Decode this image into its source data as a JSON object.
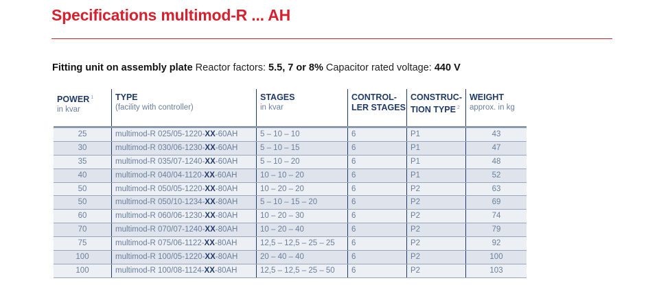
{
  "title": "Specifications multimod-R ... AH",
  "subtitle": {
    "lead": "Fitting unit on assembly plate",
    "reactor_label": "Reactor factors:",
    "reactor_value": "5.5, 7 or 8%",
    "capacitor_label": "Capacitor rated voltage:",
    "capacitor_value": "440 V"
  },
  "columns": [
    {
      "title": "POWER",
      "note": "1",
      "sub": "in kvar"
    },
    {
      "title": "TYPE",
      "note": "",
      "sub": "(facility with controller)"
    },
    {
      "title": "STAGES",
      "note": "",
      "sub": "in kvar"
    },
    {
      "title": "CONTROL-",
      "note": "",
      "sub": "LER STAGES"
    },
    {
      "title": "CONSTRUC-",
      "note": "2",
      "sub": "TION TYPE"
    },
    {
      "title": "WEIGHT",
      "note": "",
      "sub": "approx. in kg"
    }
  ],
  "rows": [
    {
      "power": "25",
      "type_pre": "multimod-R 025/05-1220-",
      "type_bold": "XX",
      "type_post": "-60AH",
      "stages": "5 – 10 – 10",
      "ctrl": "6",
      "construction": "P1",
      "weight": "43"
    },
    {
      "power": "30",
      "type_pre": "multimod-R 030/06-1230-",
      "type_bold": "XX",
      "type_post": "-60AH",
      "stages": "5 – 10 – 15",
      "ctrl": "6",
      "construction": "P1",
      "weight": "47"
    },
    {
      "power": "35",
      "type_pre": "multimod-R 035/07-1240-",
      "type_bold": "XX",
      "type_post": "-60AH",
      "stages": "5 – 10 – 20",
      "ctrl": "6",
      "construction": "P1",
      "weight": "48"
    },
    {
      "power": "40",
      "type_pre": "multimod-R 040/04-1120-",
      "type_bold": "XX",
      "type_post": "-60AH",
      "stages": "10 – 10 – 20",
      "ctrl": "6",
      "construction": "P1",
      "weight": "52"
    },
    {
      "power": "50",
      "type_pre": "multimod-R 050/05-1220-",
      "type_bold": "XX",
      "type_post": "-80AH",
      "stages": "10 – 20 – 20",
      "ctrl": "6",
      "construction": "P2",
      "weight": "63"
    },
    {
      "power": "50",
      "type_pre": "multimod-R 050/10-1234-",
      "type_bold": "XX",
      "type_post": "-80AH",
      "stages": "5 – 10 – 15 – 20",
      "ctrl": "6",
      "construction": "P2",
      "weight": "69"
    },
    {
      "power": "60",
      "type_pre": "multimod-R 060/06-1230-",
      "type_bold": "XX",
      "type_post": "-80AH",
      "stages": "10 – 20 – 30",
      "ctrl": "6",
      "construction": "P2",
      "weight": "74"
    },
    {
      "power": "70",
      "type_pre": "multimod-R 070/07-1240-",
      "type_bold": "XX",
      "type_post": "-80AH",
      "stages": "10 – 20 – 40",
      "ctrl": "6",
      "construction": "P2",
      "weight": "79"
    },
    {
      "power": "75",
      "type_pre": "multimod-R 075/06-1122-",
      "type_bold": "XX",
      "type_post": "-80AH",
      "stages": "12,5 – 12,5 – 25 – 25",
      "ctrl": "6",
      "construction": "P2",
      "weight": "92"
    },
    {
      "power": "100",
      "type_pre": "multimod-R 100/05-1220-",
      "type_bold": "XX",
      "type_post": "-80AH",
      "stages": "20 – 40 – 40",
      "ctrl": "6",
      "construction": "P2",
      "weight": "100"
    },
    {
      "power": "100",
      "type_pre": "multimod-R 100/08-1124-",
      "type_bold": "XX",
      "type_post": "-80AH",
      "stages": "12,5 – 12,5 – 25 – 50",
      "ctrl": "6",
      "construction": "P2",
      "weight": "103"
    }
  ],
  "colors": {
    "title": "#d5202e",
    "header": "#1f3a68",
    "cell_text": "#6a7f9c",
    "row_odd": "#eceff4",
    "row_even": "#dfe4ec"
  }
}
